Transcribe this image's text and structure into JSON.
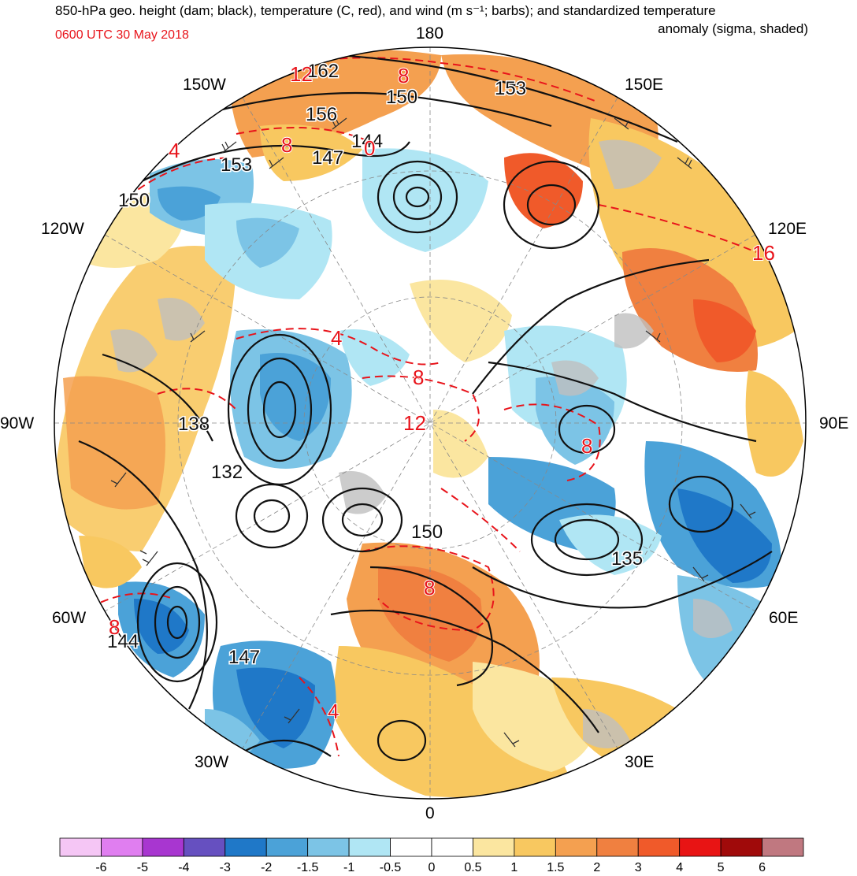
{
  "title": {
    "line1": "850-hPa geo. height (dam; black), temperature (C, red), and wind (m s⁻¹; barbs); and standardized temperature",
    "line2": "anomaly (sigma, shaded)",
    "datetime": "0600 UTC 30 May 2018",
    "datetime_color": "#e8141b"
  },
  "longitude_labels": {
    "top": "180",
    "top_left": "150W",
    "top_right": "150E",
    "upper_left": "120W",
    "upper_right": "120E",
    "left": "90W",
    "right": "90E",
    "lower_left": "60W",
    "lower_right": "60E",
    "bottom_left": "30W",
    "bottom_right": "30E",
    "bottom": "0"
  },
  "height_contour_labels": [
    "162",
    "156",
    "153",
    "150",
    "147",
    "144",
    "153",
    "150",
    "138",
    "132",
    "150",
    "135",
    "144",
    "147"
  ],
  "temperature_contour_labels": [
    "12",
    "8",
    "4",
    "8",
    "0",
    "4",
    "8",
    "12",
    "16",
    "8",
    "8",
    "8",
    "4"
  ],
  "colorbar": {
    "labels": [
      "-6",
      "-5",
      "-4",
      "-3",
      "-2",
      "-1.5",
      "-1",
      "-0.5",
      "0",
      "0.5",
      "1",
      "1.5",
      "2",
      "3",
      "4",
      "5",
      "6"
    ],
    "colors": [
      "#f5c6f5",
      "#e07ef0",
      "#a836d0",
      "#6650c0",
      "#1f78c8",
      "#4ba2d8",
      "#7cc4e6",
      "#b0e6f4",
      "#ffffff",
      "#ffffff",
      "#fbe6a0",
      "#f8c860",
      "#f4a050",
      "#f08040",
      "#f05a2a",
      "#e81414",
      "#a00a0a",
      "#c07880"
    ]
  }
}
